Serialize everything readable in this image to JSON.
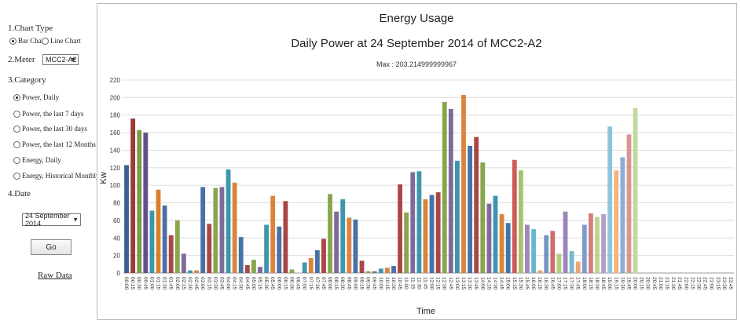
{
  "sidebar": {
    "chart_type": {
      "heading": "1.Chart Type",
      "options": [
        {
          "label": "Bar Chart",
          "selected": true
        },
        {
          "label": "Line Chart",
          "selected": false
        }
      ]
    },
    "meter": {
      "heading": "2.Meter",
      "value": "MCC2-A2"
    },
    "category": {
      "heading": "3.Category",
      "options": [
        {
          "label": "Power, Daily",
          "selected": true
        },
        {
          "label": "Power, the last 7 days",
          "selected": false
        },
        {
          "label": "Power, the last 30 days",
          "selected": false
        },
        {
          "label": "Power, the last 12 Months",
          "selected": false
        },
        {
          "label": "Energy, Daily",
          "selected": false
        },
        {
          "label": "Energy, Historical Monthly",
          "selected": false
        }
      ]
    },
    "date": {
      "heading": "4.Date",
      "value": "24 September 2014"
    },
    "go_label": "Go",
    "raw_data_label": "Raw Data"
  },
  "chart_data": {
    "type": "bar",
    "title": "Energy Usage",
    "subtitle": "Daily Power at 24 September 2014  of  MCC2-A2",
    "annotation": "Max : 203.214999999967",
    "xlabel": "Time",
    "ylabel": "Kw",
    "ylim": [
      0,
      220
    ],
    "yticks": [
      0,
      20,
      40,
      60,
      80,
      100,
      120,
      140,
      160,
      180,
      200,
      220
    ],
    "grid": true,
    "legend": "none",
    "categories": [
      "00:00",
      "00:15",
      "00:30",
      "00:45",
      "01:00",
      "01:15",
      "01:30",
      "01:45",
      "02:00",
      "02:15",
      "02:30",
      "02:45",
      "03:00",
      "03:15",
      "03:30",
      "03:45",
      "04:00",
      "04:15",
      "04:30",
      "04:45",
      "05:00",
      "05:15",
      "05:30",
      "05:45",
      "06:00",
      "06:15",
      "06:30",
      "06:45",
      "07:00",
      "07:15",
      "07:30",
      "07:45",
      "08:00",
      "08:15",
      "08:30",
      "08:45",
      "09:00",
      "09:15",
      "09:30",
      "09:45",
      "10:00",
      "10:15",
      "10:30",
      "10:45",
      "11:00",
      "11:15",
      "11:30",
      "11:45",
      "12:00",
      "12:15",
      "12:30",
      "12:45",
      "13:00",
      "13:15",
      "13:30",
      "13:45",
      "14:00",
      "14:15",
      "14:30",
      "14:45",
      "15:00",
      "15:15",
      "15:30",
      "15:45",
      "16:00",
      "16:15",
      "16:30",
      "16:45",
      "17:00",
      "17:15",
      "17:30",
      "17:45",
      "18:00",
      "18:15",
      "18:30",
      "18:45",
      "19:00",
      "19:15",
      "19:30",
      "19:45",
      "20:00",
      "20:15",
      "20:30",
      "20:45",
      "21:00",
      "21:15",
      "21:30",
      "21:45",
      "22:00",
      "22:15",
      "22:30",
      "22:45",
      "23:00",
      "23:15",
      "23:30",
      "23:45"
    ],
    "values": [
      123,
      176,
      163,
      160,
      71,
      95,
      77,
      43,
      60,
      22,
      3,
      3,
      98,
      56,
      97,
      98,
      118,
      103,
      41,
      9,
      15,
      7,
      55,
      88,
      53,
      82,
      4,
      0,
      12,
      17,
      26,
      39,
      90,
      70,
      84,
      63,
      61,
      14,
      2,
      2,
      5,
      6,
      8,
      101,
      69,
      115,
      116,
      84,
      89,
      92,
      195,
      187,
      128,
      203,
      145,
      155,
      126,
      79,
      88,
      67,
      57,
      129,
      117,
      55,
      50,
      3,
      43,
      48,
      22,
      70,
      25,
      13,
      55,
      68,
      64,
      67,
      167,
      117,
      132,
      158,
      188,
      0,
      0,
      0,
      0,
      0,
      0,
      0,
      0,
      0,
      0,
      0,
      0,
      0,
      0,
      0
    ],
    "colors": [
      "#3d5f94",
      "#9c3b38",
      "#7c9b4a",
      "#62508a",
      "#3e95ae",
      "#dc7e2c",
      "#4a6fa5",
      "#aa4643",
      "#89a54e",
      "#80699b",
      "#3d96ae",
      "#db843d",
      "#4572a7",
      "#aa4643",
      "#89a54e",
      "#80699b",
      "#3d96ae",
      "#db843d",
      "#4572a7",
      "#aa4643",
      "#89a54e",
      "#80699b",
      "#3d96ae",
      "#db843d",
      "#4572a7",
      "#aa4643",
      "#89a54e",
      "#80699b",
      "#3d96ae",
      "#db843d",
      "#4572a7",
      "#aa4643",
      "#89a54e",
      "#80699b",
      "#3d96ae",
      "#db843d",
      "#4572a7",
      "#aa4643",
      "#89a54e",
      "#80699b",
      "#3d96ae",
      "#db843d",
      "#4572a7",
      "#aa4643",
      "#89a54e",
      "#80699b",
      "#3d96ae",
      "#db843d",
      "#4572a7",
      "#aa4643",
      "#89a54e",
      "#80699b",
      "#3d96ae",
      "#db843d",
      "#4572a7",
      "#aa4643",
      "#89a54e",
      "#80699b",
      "#3d96ae",
      "#db843d",
      "#4572a7",
      "#cc5b58",
      "#a9c26e",
      "#9d89b8",
      "#6cb6cc",
      "#e9a468",
      "#7595c4",
      "#cc6f6c",
      "#b1cd81",
      "#9b86b8",
      "#77b8cc",
      "#eda56f",
      "#7d9ccc",
      "#d07f7d",
      "#bfd391",
      "#b29fc9",
      "#8bc6da",
      "#f2b37f",
      "#90acd5",
      "#d99593",
      "#c2d89c",
      "#ccc",
      "#ccc",
      "#ccc",
      "#ccc",
      "#ccc",
      "#ccc",
      "#ccc",
      "#ccc",
      "#ccc",
      "#ccc",
      "#ccc",
      "#ccc",
      "#ccc",
      "#ccc",
      "#ccc"
    ]
  }
}
